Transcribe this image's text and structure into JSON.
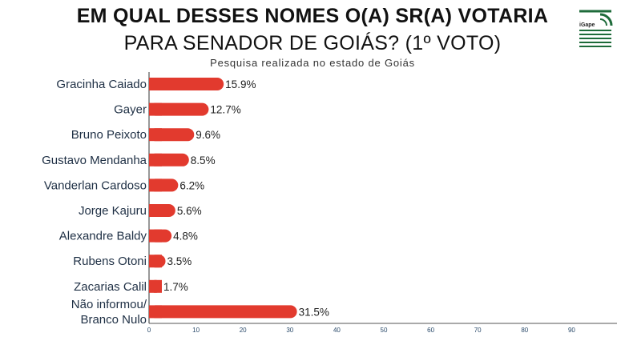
{
  "header": {
    "title_line1": "EM QUAL DESSES NOMES O(A) SR(A) VOTARIA",
    "title_line2": "PARA SENADOR DE GOIÁS? (1º VOTO)",
    "subtitle": "Pesquisa realizada no estado de Goiás"
  },
  "logo": {
    "text": "iGape",
    "icon": "igape-logo-icon"
  },
  "colors": {
    "bar": "#e23a2e",
    "axis": "#555555",
    "logo_green": "#1e6b3a"
  },
  "chart_data": {
    "type": "bar",
    "orientation": "horizontal",
    "categories": [
      [
        "Gracinha Caiado"
      ],
      [
        "Gayer"
      ],
      [
        "Bruno Peixoto"
      ],
      [
        "Gustavo Mendanha"
      ],
      [
        "Vanderlan Cardoso"
      ],
      [
        "Jorge Kajuru"
      ],
      [
        "Alexandre Baldy"
      ],
      [
        "Rubens Otoni"
      ],
      [
        "Zacarias Calil"
      ],
      [
        "Não informou/",
        "Branco Nulo"
      ]
    ],
    "values": [
      15.9,
      12.7,
      9.6,
      8.5,
      6.2,
      5.6,
      4.8,
      3.5,
      1.7,
      31.5
    ],
    "value_labels": [
      "15.9%",
      "12.7%",
      "9.6%",
      "8.5%",
      "6.2%",
      "5.6%",
      "4.8%",
      "3.5%",
      "1.7%",
      "31.5%"
    ],
    "xlim": [
      0,
      100
    ],
    "xticks": [
      0,
      10,
      20,
      30,
      40,
      50,
      60,
      70,
      80,
      90
    ],
    "grid": false,
    "legend": "none"
  }
}
